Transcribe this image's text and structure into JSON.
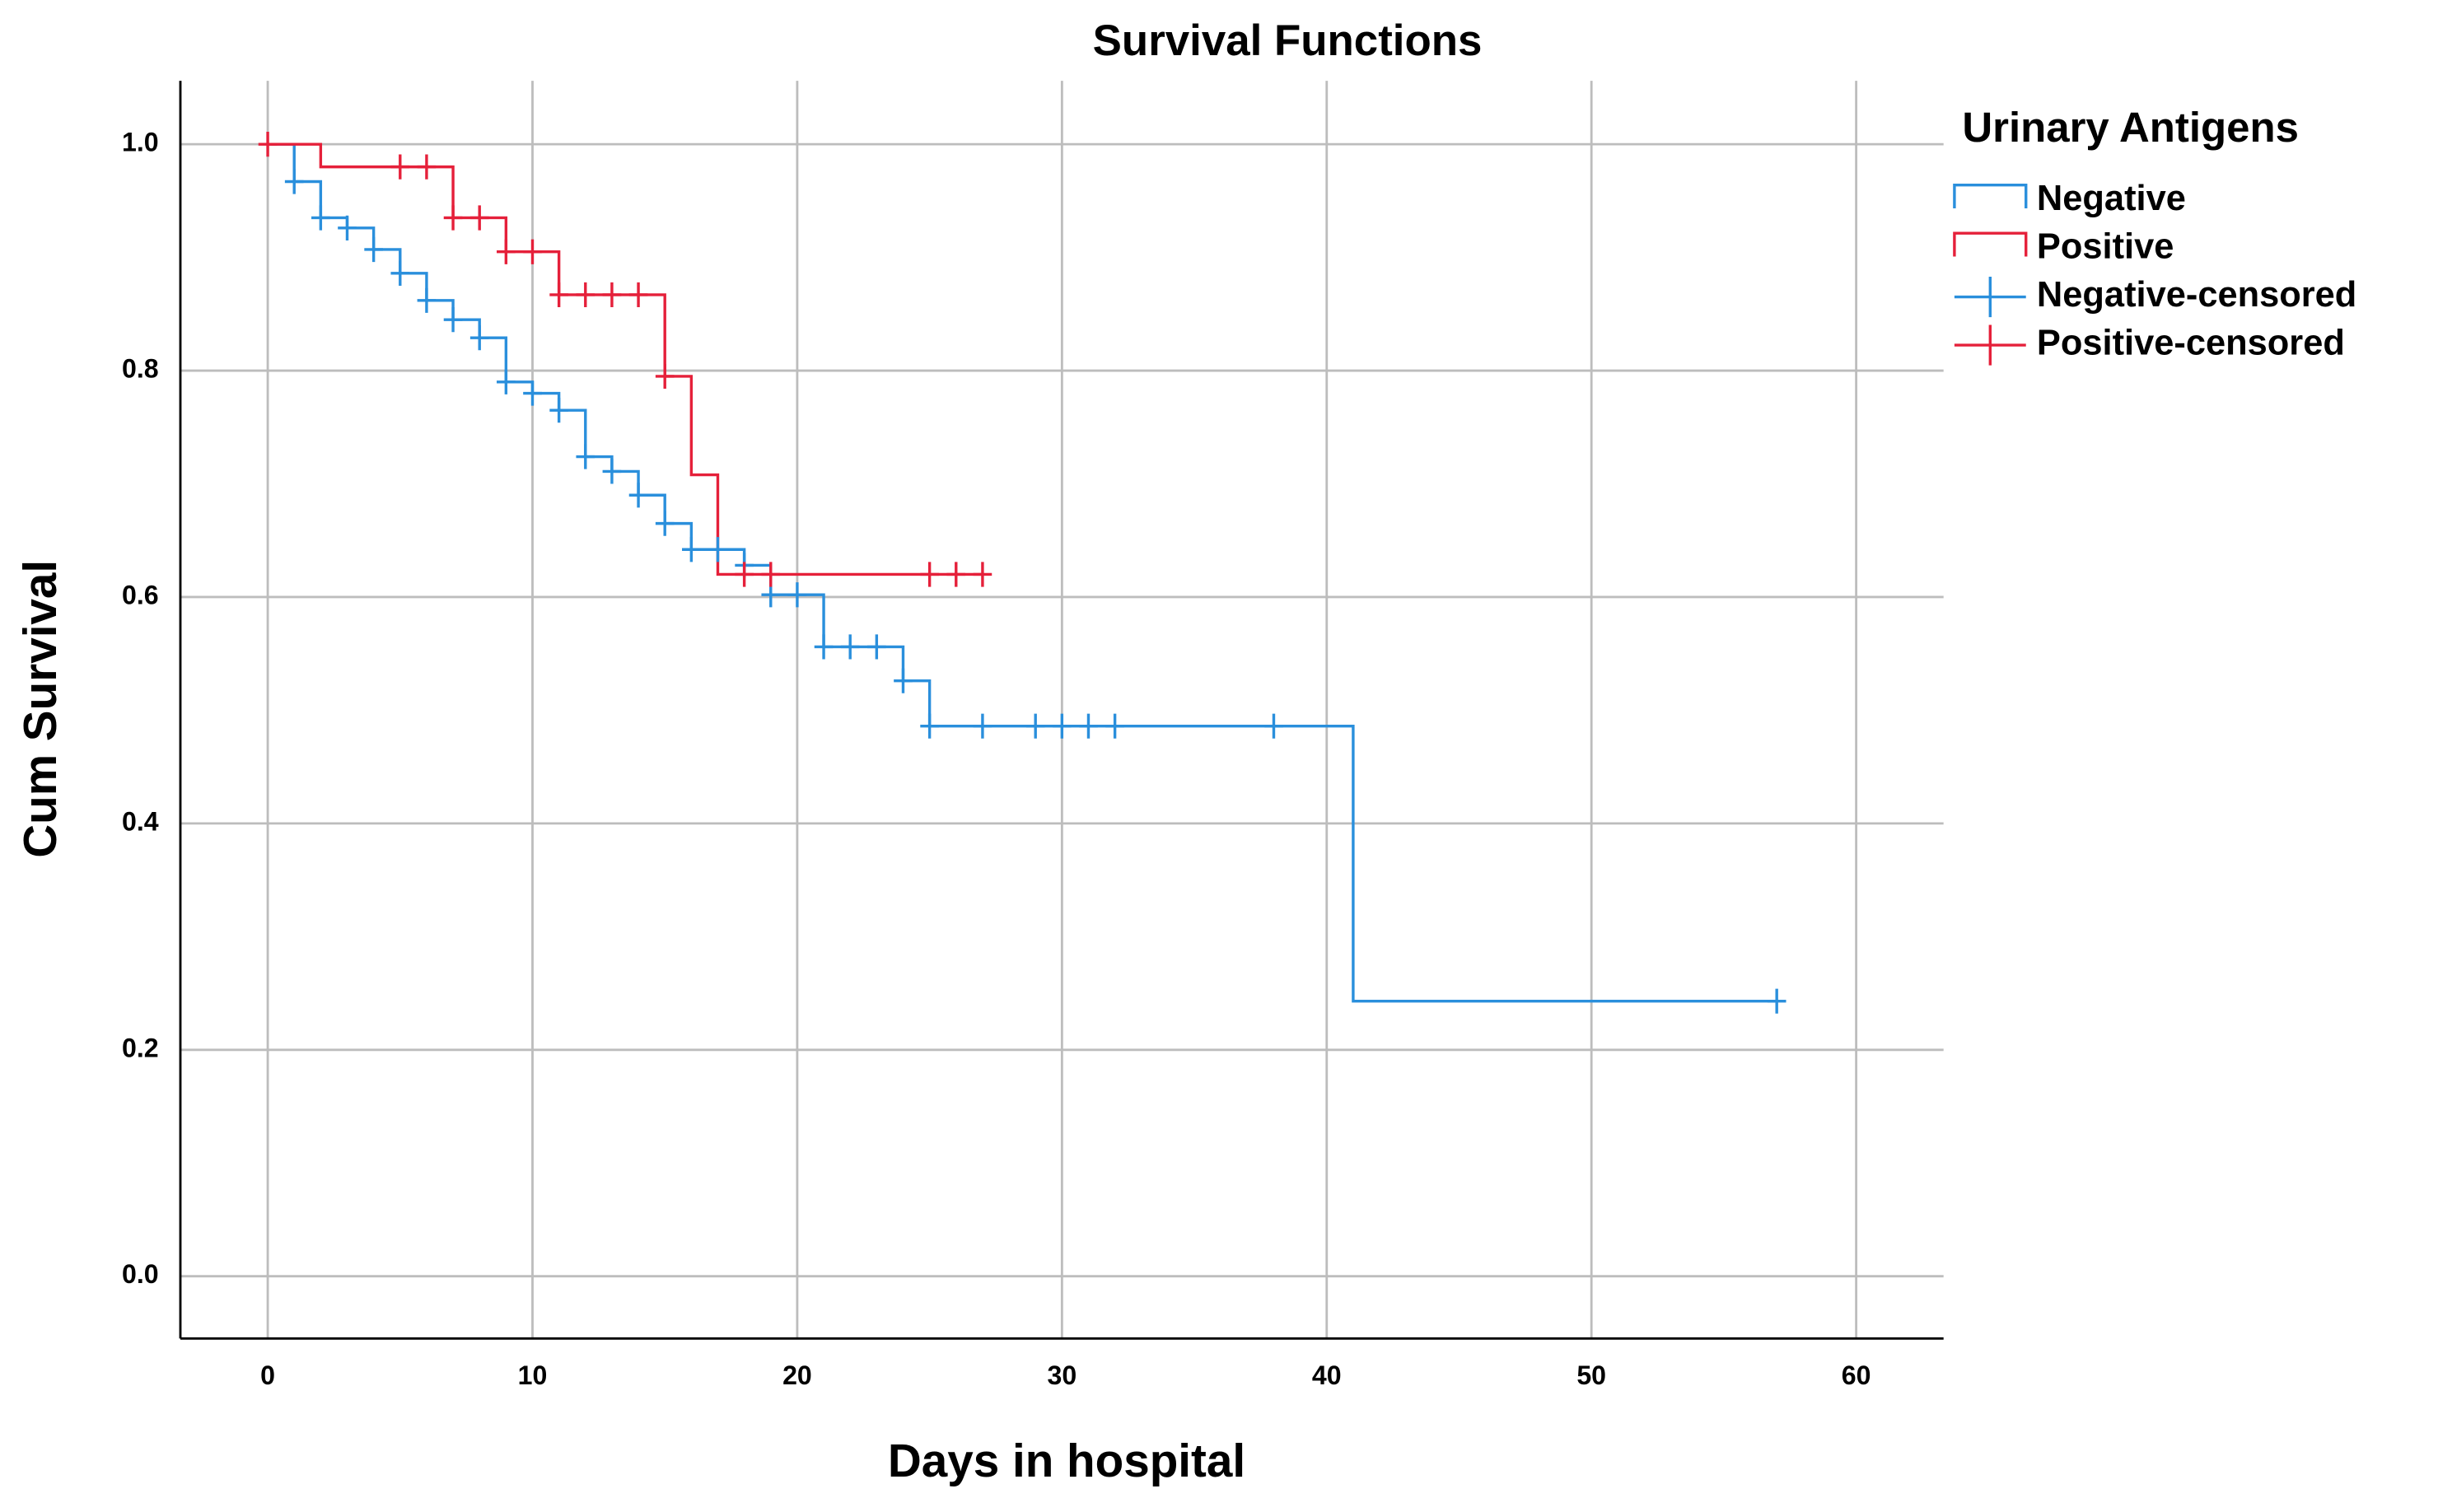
{
  "chart_data": {
    "type": "line",
    "title": "Survival Functions",
    "x_label": "Days in hospital",
    "y_label": "Cum Survival",
    "legend_title": "Urinary Antigens",
    "legend": "right",
    "grid": true,
    "xlim": [
      -3.3,
      63.3
    ],
    "ylim": [
      -0.055,
      1.056
    ],
    "xticks": [
      0,
      10,
      20,
      30,
      40,
      50,
      60
    ],
    "yticks": [
      {
        "value": 0,
        "label": "0.0"
      },
      0.2,
      0.4,
      0.6,
      0.8,
      {
        "value": 1,
        "label": "1.0"
      }
    ],
    "series": [
      {
        "name": "Negative",
        "color": "#2a8fdc",
        "style": "step",
        "x": [
          0,
          1,
          2,
          3,
          4,
          5,
          6,
          7,
          8,
          9,
          10,
          11,
          12,
          13,
          14,
          15,
          16,
          18,
          19,
          21,
          24,
          25,
          41,
          57
        ],
        "values": [
          1.0,
          0.967,
          0.935,
          0.926,
          0.907,
          0.886,
          0.862,
          0.845,
          0.829,
          0.79,
          0.78,
          0.765,
          0.724,
          0.711,
          0.69,
          0.665,
          0.642,
          0.628,
          0.602,
          0.556,
          0.526,
          0.486,
          0.243,
          0.243
        ]
      },
      {
        "name": "Positive",
        "color": "#e5203a",
        "style": "step",
        "x": [
          0,
          2,
          7,
          9,
          11,
          15,
          16,
          17,
          27
        ],
        "values": [
          1.0,
          0.98,
          0.935,
          0.905,
          0.867,
          0.795,
          0.708,
          0.62,
          0.62
        ]
      },
      {
        "name": "Negative-censored",
        "color": "#2a8fdc",
        "style": "censored",
        "x": [
          1,
          2,
          3,
          4,
          5,
          6,
          7,
          8,
          9,
          10,
          11,
          12,
          13,
          14,
          15,
          16,
          17,
          18,
          19,
          20,
          21,
          22,
          23,
          24,
          25,
          27,
          29,
          30,
          31,
          32,
          38,
          57
        ],
        "values": [
          0.967,
          0.935,
          0.926,
          0.907,
          0.886,
          0.862,
          0.845,
          0.829,
          0.79,
          0.78,
          0.765,
          0.724,
          0.711,
          0.69,
          0.665,
          0.642,
          0.642,
          0.628,
          0.602,
          0.602,
          0.556,
          0.556,
          0.556,
          0.526,
          0.486,
          0.486,
          0.486,
          0.486,
          0.486,
          0.486,
          0.486,
          0.243
        ]
      },
      {
        "name": "Positive-censored",
        "color": "#e5203a",
        "style": "censored",
        "x": [
          0,
          5,
          6,
          7,
          8,
          9,
          10,
          11,
          12,
          13,
          14,
          15,
          18,
          19,
          25,
          26,
          27
        ],
        "values": [
          1.0,
          0.98,
          0.98,
          0.935,
          0.935,
          0.905,
          0.905,
          0.867,
          0.867,
          0.867,
          0.867,
          0.795,
          0.62,
          0.62,
          0.62,
          0.62,
          0.62
        ]
      }
    ]
  }
}
